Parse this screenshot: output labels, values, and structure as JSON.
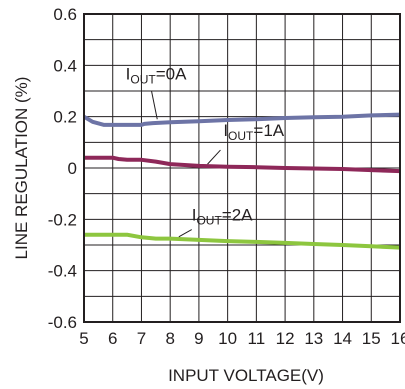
{
  "chart_data": {
    "type": "line",
    "title": "",
    "xlabel": "INPUT VOLTAGE(V)",
    "ylabel": "LINE REGULATION (%)",
    "xlim": [
      5,
      16
    ],
    "ylim": [
      -0.6,
      0.6
    ],
    "grid": true,
    "x_ticks": [
      5,
      6,
      7,
      8,
      9,
      10,
      11,
      12,
      13,
      14,
      15,
      16
    ],
    "x_tick_labels": [
      "5",
      "6",
      "7",
      "8",
      "9",
      "10",
      "11",
      "12",
      "13",
      "14",
      "15",
      "16"
    ],
    "y_ticks": [
      -0.6,
      -0.4,
      -0.2,
      0,
      0.2,
      0.4,
      0.6
    ],
    "y_tick_labels": [
      "-0.6",
      "-0.4",
      "-0.2",
      "0",
      "0.2",
      "0.4",
      "0.6"
    ],
    "series": [
      {
        "name": "IOUT=0A",
        "name_main": "I",
        "name_sub": "OUT",
        "name_rest": "=0A",
        "color": "#6d74a6",
        "x": [
          5,
          5.3,
          5.7,
          6,
          7,
          7.1,
          7.4,
          8,
          9,
          10,
          11,
          12,
          13,
          14,
          15,
          16
        ],
        "y": [
          0.2,
          0.18,
          0.168,
          0.168,
          0.168,
          0.172,
          0.175,
          0.178,
          0.182,
          0.187,
          0.19,
          0.195,
          0.198,
          0.2,
          0.205,
          0.208
        ]
      },
      {
        "name": "IOUT=1A",
        "name_main": "I",
        "name_sub": "OUT",
        "name_rest": "=1A",
        "color": "#8e2859",
        "x": [
          5,
          6,
          6.2,
          6.5,
          7,
          7.5,
          8,
          9,
          10,
          11,
          12,
          13,
          14,
          15,
          16
        ],
        "y": [
          0.04,
          0.04,
          0.035,
          0.032,
          0.032,
          0.025,
          0.015,
          0.008,
          0.005,
          0.003,
          0,
          -0.002,
          -0.004,
          -0.008,
          -0.012
        ]
      },
      {
        "name": "IOUT=2A",
        "name_main": "I",
        "name_sub": "OUT",
        "name_rest": "=2A",
        "color": "#8dc63f",
        "x": [
          5,
          6,
          6.5,
          7,
          7.5,
          8,
          9,
          10,
          11,
          12,
          13,
          14,
          15,
          16
        ],
        "y": [
          -0.26,
          -0.26,
          -0.26,
          -0.27,
          -0.275,
          -0.275,
          -0.28,
          -0.285,
          -0.288,
          -0.292,
          -0.296,
          -0.3,
          -0.305,
          -0.31
        ]
      }
    ]
  }
}
